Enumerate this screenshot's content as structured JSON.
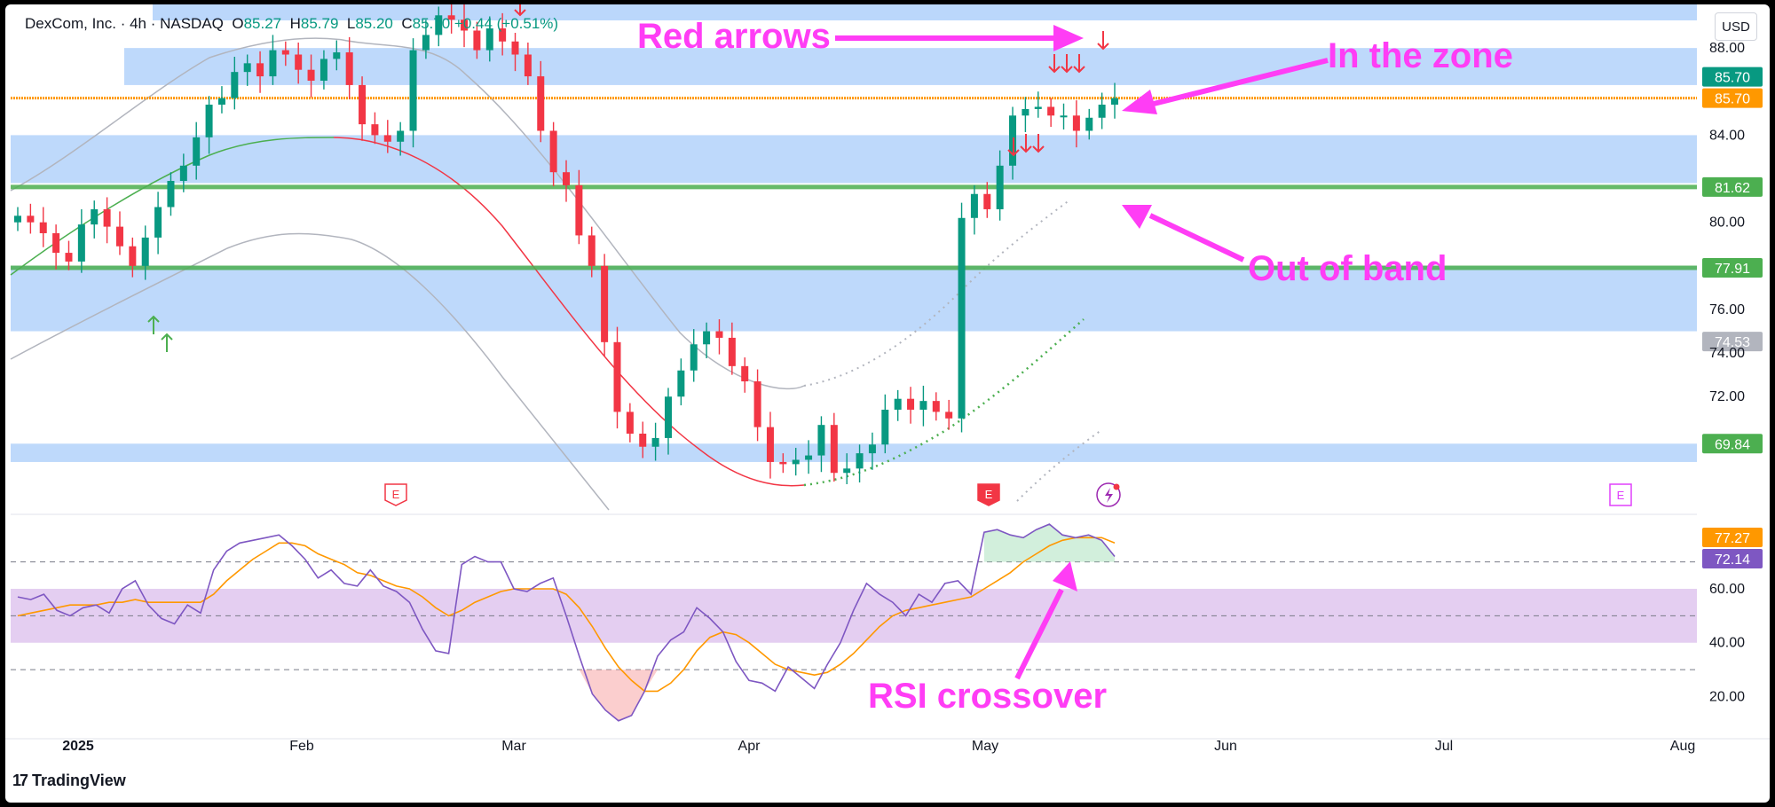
{
  "header": {
    "symbol": "DexCom, Inc. · 4h · NASDAQ",
    "o_label": "O",
    "o_value": "85.27",
    "h_label": "H",
    "h_value": "85.79",
    "l_label": "L",
    "l_value": "85.20",
    "c_label": "C",
    "c_value": "85.70",
    "change": "+0.44 (+0.51%)"
  },
  "currency_button": "USD",
  "brand": "TradingView",
  "annotations": {
    "red_arrows": "Red arrows",
    "in_the_zone": "In the zone",
    "out_of_band": "Out of band",
    "rsi_crossover": "RSI crossover"
  },
  "colors": {
    "up": "#089981",
    "down": "#f23645",
    "zone": "#bbd7fb",
    "annotation": "#ff3df5",
    "orange_line": "#ff9800",
    "green_line": "#4caf50",
    "rsi": "#7e57c2",
    "rsi_ma": "#ff9800"
  },
  "chart_data": [
    {
      "type": "candlestick",
      "title": "DexCom, Inc. · 4h · NASDAQ",
      "x_ticks": [
        "2025",
        "Feb",
        "Mar",
        "Apr",
        "May",
        "Jun",
        "Jul",
        "Aug"
      ],
      "y_ticks": [
        "88.00",
        "84.00",
        "80.00",
        "76.00",
        "74.00",
        "72.00"
      ],
      "ylim": [
        66.8,
        90.0
      ],
      "price_labels": [
        {
          "value": 85.7,
          "text": "85.70",
          "color": "#089981"
        },
        {
          "value": 85.7,
          "text": "85.70",
          "color": "#ff9800"
        },
        {
          "value": 81.62,
          "text": "81.62",
          "color": "#4caf50"
        },
        {
          "value": 77.91,
          "text": "77.91",
          "color": "#4caf50"
        },
        {
          "value": 74.53,
          "text": "74.53",
          "color": "#b2b5be"
        },
        {
          "value": 69.84,
          "text": "69.84",
          "color": "#4caf50"
        }
      ],
      "horizontal_lines": [
        {
          "value": 85.7,
          "color": "#ff9800"
        },
        {
          "value": 81.62,
          "color": "#4caf50"
        },
        {
          "value": 77.91,
          "color": "#4caf50"
        }
      ],
      "zones": [
        {
          "from": 86.3,
          "to": 88.0
        },
        {
          "from": 81.8,
          "to": 84.0
        },
        {
          "from": 75.0,
          "to": 78.0
        },
        {
          "from": 69.0,
          "to": 69.84
        }
      ],
      "candles_close_path": [
        80.3,
        80.0,
        79.5,
        78.6,
        78.2,
        79.9,
        80.6,
        79.8,
        78.9,
        78.0,
        79.3,
        80.7,
        81.9,
        82.6,
        83.9,
        85.4,
        85.7,
        86.9,
        87.3,
        86.7,
        87.9,
        87.7,
        87.0,
        86.5,
        87.5,
        87.8,
        86.3,
        84.5,
        84.0,
        83.7,
        84.2,
        87.9,
        88.6,
        89.5,
        89.3,
        88.8,
        87.9,
        88.9,
        88.3,
        87.7,
        86.7,
        84.2,
        82.3,
        81.7,
        79.4,
        78.0,
        74.5,
        71.3,
        70.3,
        69.7,
        70.1,
        72.0,
        73.2,
        74.4,
        75.0,
        74.7,
        73.4,
        72.7,
        70.6,
        69.0,
        68.9,
        69.1,
        69.3,
        70.7,
        68.5,
        68.7,
        69.4,
        69.8,
        71.4,
        71.9,
        71.4,
        71.8,
        71.3,
        71.0,
        80.2,
        81.3,
        80.6,
        82.6,
        84.9,
        85.2,
        85.3,
        84.9,
        84.9,
        84.2,
        84.8,
        85.4,
        85.7
      ],
      "annotations_markers": {
        "earnings_labels": [
          "E",
          "E",
          "E"
        ]
      }
    },
    {
      "type": "line",
      "title": "RSI",
      "y_ticks": [
        "60.00",
        "40.00",
        "20.00"
      ],
      "ylim": [
        7,
        86
      ],
      "value_labels": [
        {
          "value": 77.27,
          "text": "77.27",
          "color": "#ff9800"
        },
        {
          "value": 72.14,
          "text": "72.14",
          "color": "#7e57c2"
        }
      ],
      "band": [
        40,
        60
      ],
      "levels": [
        70,
        50,
        30
      ],
      "series": [
        {
          "values": [
            57,
            56,
            58,
            52,
            50,
            53,
            54,
            51,
            60,
            63,
            54,
            49,
            47,
            54,
            51,
            67,
            74,
            77,
            78,
            79,
            80,
            76,
            71,
            64,
            67,
            62,
            61,
            67,
            61,
            59,
            55,
            45,
            37,
            36,
            69,
            72,
            70,
            70,
            60,
            59,
            62,
            64,
            50,
            35,
            21,
            15,
            11,
            13,
            22,
            35,
            41,
            44,
            53,
            49,
            44,
            33,
            26,
            25,
            22,
            31,
            27,
            23,
            32,
            40,
            52,
            62,
            58,
            55,
            50,
            58,
            55,
            62,
            63,
            58,
            81,
            82,
            80,
            79,
            82,
            84,
            80,
            79,
            80,
            78,
            72
          ]
        },
        {
          "values": [
            50,
            51,
            52,
            53,
            54,
            54,
            54,
            55,
            55,
            56,
            55,
            55,
            55,
            55,
            55,
            58,
            63,
            67,
            71,
            74,
            77,
            77,
            76,
            73,
            71,
            69,
            66,
            65,
            63,
            61,
            60,
            57,
            53,
            50,
            52,
            55,
            57,
            59,
            60,
            60,
            60,
            60,
            58,
            53,
            46,
            38,
            31,
            26,
            22,
            22,
            25,
            30,
            37,
            42,
            44,
            43,
            40,
            36,
            32,
            30,
            29,
            28,
            29,
            32,
            36,
            41,
            46,
            50,
            52,
            53,
            54,
            55,
            56,
            57,
            60,
            63,
            66,
            70,
            73,
            76,
            78,
            79,
            79,
            79,
            77
          ]
        }
      ]
    }
  ]
}
